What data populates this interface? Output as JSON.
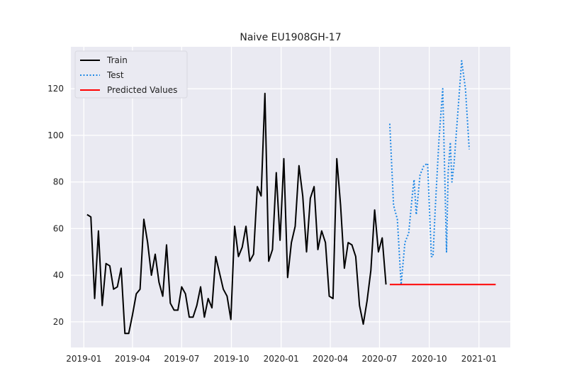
{
  "chart_data": {
    "type": "line",
    "title": "Naive EU1908GH-17",
    "xlabel": "",
    "ylabel": "",
    "xlim": [
      "2018-12-08",
      "2021-02-28"
    ],
    "ylim": [
      9,
      138
    ],
    "grid": true,
    "legend_position": "top-left",
    "x_ticks": [
      "2019-01-01",
      "2019-04-01",
      "2019-07-01",
      "2019-10-01",
      "2020-01-01",
      "2020-04-01",
      "2020-07-01",
      "2020-10-01",
      "2021-01-01"
    ],
    "x_tick_labels": [
      "2019-01",
      "2019-04",
      "2019-07",
      "2019-10",
      "2020-01",
      "2020-04",
      "2020-07",
      "2020-10",
      "2021-01"
    ],
    "y_ticks": [
      20,
      40,
      60,
      80,
      100,
      120
    ],
    "y_tick_labels": [
      "20",
      "40",
      "60",
      "80",
      "100",
      "120"
    ],
    "series": [
      {
        "name": "Train",
        "color": "#000000",
        "style": "solid",
        "points": [
          [
            "2019-01-07",
            66
          ],
          [
            "2019-01-14",
            65
          ],
          [
            "2019-01-21",
            30
          ],
          [
            "2019-01-28",
            59
          ],
          [
            "2019-02-04",
            27
          ],
          [
            "2019-02-11",
            45
          ],
          [
            "2019-02-18",
            44
          ],
          [
            "2019-02-25",
            34
          ],
          [
            "2019-03-04",
            35
          ],
          [
            "2019-03-11",
            43
          ],
          [
            "2019-03-18",
            15
          ],
          [
            "2019-03-25",
            15
          ],
          [
            "2019-04-01",
            23
          ],
          [
            "2019-04-08",
            32
          ],
          [
            "2019-04-15",
            34
          ],
          [
            "2019-04-22",
            64
          ],
          [
            "2019-04-29",
            54
          ],
          [
            "2019-05-06",
            40
          ],
          [
            "2019-05-13",
            49
          ],
          [
            "2019-05-20",
            37
          ],
          [
            "2019-05-27",
            31
          ],
          [
            "2019-06-03",
            53
          ],
          [
            "2019-06-10",
            28
          ],
          [
            "2019-06-17",
            25
          ],
          [
            "2019-06-24",
            25
          ],
          [
            "2019-07-01",
            35
          ],
          [
            "2019-07-08",
            32
          ],
          [
            "2019-07-15",
            22
          ],
          [
            "2019-07-22",
            22
          ],
          [
            "2019-07-29",
            27
          ],
          [
            "2019-08-05",
            35
          ],
          [
            "2019-08-12",
            22
          ],
          [
            "2019-08-19",
            30
          ],
          [
            "2019-08-26",
            26
          ],
          [
            "2019-09-02",
            48
          ],
          [
            "2019-09-09",
            41
          ],
          [
            "2019-09-16",
            34
          ],
          [
            "2019-09-23",
            31
          ],
          [
            "2019-09-30",
            21
          ],
          [
            "2019-10-07",
            61
          ],
          [
            "2019-10-14",
            48
          ],
          [
            "2019-10-21",
            52
          ],
          [
            "2019-10-28",
            61
          ],
          [
            "2019-11-04",
            46
          ],
          [
            "2019-11-11",
            49
          ],
          [
            "2019-11-18",
            78
          ],
          [
            "2019-11-25",
            74
          ],
          [
            "2019-12-02",
            118
          ],
          [
            "2019-12-09",
            46
          ],
          [
            "2019-12-16",
            51
          ],
          [
            "2019-12-23",
            84
          ],
          [
            "2019-12-30",
            55
          ],
          [
            "2020-01-06",
            90
          ],
          [
            "2020-01-13",
            39
          ],
          [
            "2020-01-20",
            54
          ],
          [
            "2020-01-27",
            61
          ],
          [
            "2020-02-03",
            87
          ],
          [
            "2020-02-10",
            74
          ],
          [
            "2020-02-17",
            50
          ],
          [
            "2020-02-24",
            73
          ],
          [
            "2020-03-02",
            78
          ],
          [
            "2020-03-09",
            51
          ],
          [
            "2020-03-16",
            59
          ],
          [
            "2020-03-23",
            54
          ],
          [
            "2020-03-30",
            31
          ],
          [
            "2020-04-06",
            30
          ],
          [
            "2020-04-13",
            90
          ],
          [
            "2020-04-20",
            70
          ],
          [
            "2020-04-27",
            43
          ],
          [
            "2020-05-04",
            54
          ],
          [
            "2020-05-11",
            53
          ],
          [
            "2020-05-18",
            48
          ],
          [
            "2020-05-25",
            27
          ],
          [
            "2020-06-01",
            19
          ],
          [
            "2020-06-08",
            29
          ],
          [
            "2020-06-15",
            42
          ],
          [
            "2020-06-22",
            68
          ],
          [
            "2020-06-29",
            50
          ],
          [
            "2020-07-06",
            56
          ],
          [
            "2020-07-13",
            36
          ]
        ]
      },
      {
        "name": "Test",
        "color": "#1e88e5",
        "style": "dotted",
        "points": [
          [
            "2020-07-20",
            105
          ],
          [
            "2020-07-27",
            70
          ],
          [
            "2020-08-03",
            64
          ],
          [
            "2020-08-10",
            36
          ],
          [
            "2020-08-17",
            54
          ],
          [
            "2020-08-24",
            58
          ],
          [
            "2020-08-31",
            75
          ],
          [
            "2020-09-03",
            81
          ],
          [
            "2020-09-07",
            66
          ],
          [
            "2020-09-14",
            83
          ],
          [
            "2020-09-21",
            87
          ],
          [
            "2020-09-28",
            88
          ],
          [
            "2020-10-05",
            48
          ],
          [
            "2020-10-08",
            48
          ],
          [
            "2020-10-12",
            68
          ],
          [
            "2020-10-19",
            98
          ],
          [
            "2020-10-26",
            120
          ],
          [
            "2020-11-02",
            50
          ],
          [
            "2020-11-05",
            84
          ],
          [
            "2020-11-09",
            97
          ],
          [
            "2020-11-12",
            80
          ],
          [
            "2020-11-16",
            88
          ],
          [
            "2020-11-23",
            110
          ],
          [
            "2020-11-30",
            132
          ],
          [
            "2020-12-07",
            120
          ],
          [
            "2020-12-14",
            94
          ]
        ]
      },
      {
        "name": "Predicted Values",
        "color": "#ff0000",
        "style": "solid",
        "points": [
          [
            "2020-07-20",
            36
          ],
          [
            "2021-02-01",
            36
          ]
        ]
      }
    ]
  }
}
